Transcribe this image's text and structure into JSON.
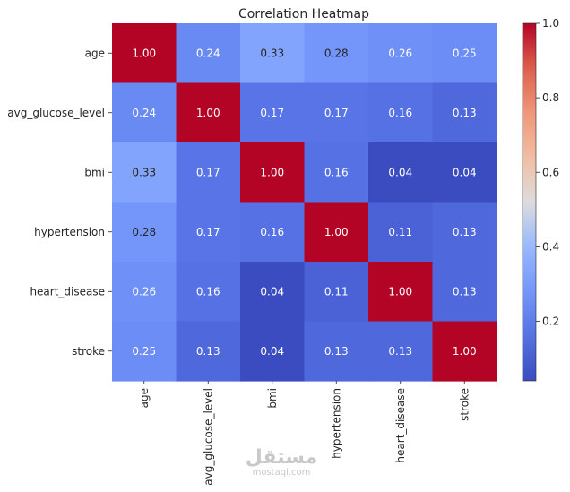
{
  "chart_data": {
    "type": "heatmap",
    "title": "Correlation Heatmap",
    "xlabel": "",
    "ylabel": "",
    "row_labels": [
      "age",
      "avg_glucose_level",
      "bmi",
      "hypertension",
      "heart_disease",
      "stroke"
    ],
    "col_labels": [
      "age",
      "avg_glucose_level",
      "bmi",
      "hypertension",
      "heart_disease",
      "stroke"
    ],
    "matrix": [
      [
        1.0,
        0.24,
        0.33,
        0.28,
        0.26,
        0.25
      ],
      [
        0.24,
        1.0,
        0.17,
        0.17,
        0.16,
        0.13
      ],
      [
        0.33,
        0.17,
        1.0,
        0.16,
        0.04,
        0.04
      ],
      [
        0.28,
        0.17,
        0.16,
        1.0,
        0.11,
        0.13
      ],
      [
        0.26,
        0.16,
        0.04,
        0.11,
        1.0,
        0.13
      ],
      [
        0.25,
        0.13,
        0.04,
        0.13,
        0.13,
        1.0
      ]
    ],
    "cell_labels": [
      [
        "1.00",
        "0.24",
        "0.33",
        "0.28",
        "0.26",
        "0.25"
      ],
      [
        "0.24",
        "1.00",
        "0.17",
        "0.17",
        "0.16",
        "0.13"
      ],
      [
        "0.33",
        "0.17",
        "1.00",
        "0.16",
        "0.04",
        "0.04"
      ],
      [
        "0.28",
        "0.17",
        "0.16",
        "1.00",
        "0.11",
        "0.13"
      ],
      [
        "0.26",
        "0.16",
        "0.04",
        "0.11",
        "1.00",
        "0.13"
      ],
      [
        "0.25",
        "0.13",
        "0.04",
        "0.13",
        "0.13",
        "1.00"
      ]
    ],
    "colormap": "coolwarm",
    "vmin": 0.04,
    "vmax": 1.0,
    "colorbar": {
      "ticks": [
        0.2,
        0.4,
        0.6,
        0.8,
        1.0
      ],
      "tick_labels": [
        "0.2",
        "0.4",
        "0.6",
        "0.8",
        "1.0"
      ],
      "placement": "right"
    },
    "grid": false
  },
  "colors": {
    "background": "#ffffff",
    "text": "#262626",
    "annotation_light": "#ffffff",
    "annotation_dark": "#262626"
  },
  "watermark": {
    "logo": "مستقل",
    "text": "mostaql.com"
  }
}
